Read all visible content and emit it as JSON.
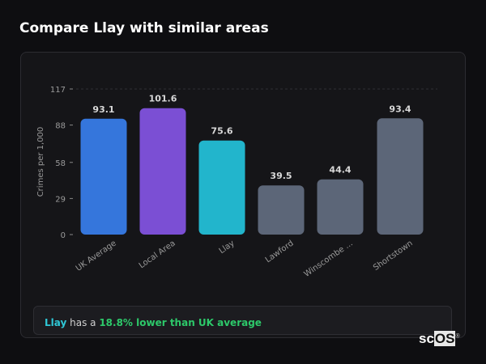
{
  "title": "Compare Llay with similar areas",
  "chart_data": {
    "type": "bar",
    "ylabel": "Crimes per 1,000",
    "xlabel": "",
    "ylim": [
      0,
      117
    ],
    "yticks": [
      0,
      29,
      58,
      88,
      117
    ],
    "grid": "top dashed line only",
    "categories": [
      "UK Average",
      "Local Area",
      "Llay",
      "Lawford",
      "Winscombe ...",
      "Shortstown"
    ],
    "values": [
      93.1,
      101.6,
      75.6,
      39.5,
      44.4,
      93.4
    ],
    "value_labels": [
      "93.1",
      "101.6",
      "75.6",
      "39.5",
      "44.4",
      "93.4"
    ],
    "colors": [
      "#3576dc",
      "#7b4fd4",
      "#22b5cc",
      "#5c6678",
      "#5c6678",
      "#5c6678"
    ]
  },
  "callout": {
    "area": "Llay",
    "text": " has a ",
    "highlight": "18.8% lower than UK average",
    "area_color": "#2fc7d6",
    "highlight_color": "#2dc96a"
  },
  "logo": {
    "text_a": "sc",
    "text_b": "OS",
    "mark": "®"
  }
}
